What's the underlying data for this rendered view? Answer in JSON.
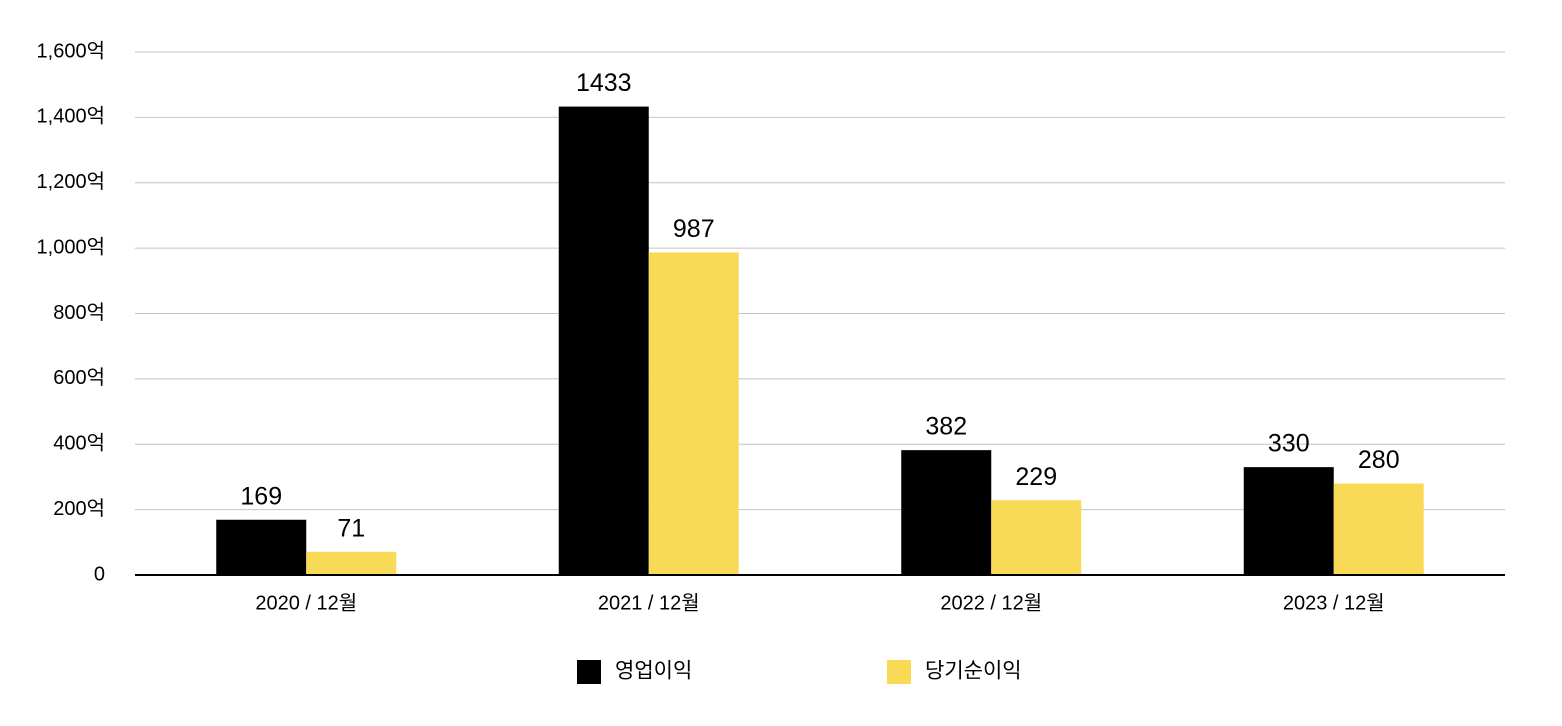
{
  "chart_data": {
    "type": "bar",
    "categories": [
      "2020 / 12월",
      "2021 / 12월",
      "2022 / 12월",
      "2023 / 12월"
    ],
    "series": [
      {
        "name": "영업이익",
        "color": "#000000",
        "values": [
          169,
          1433,
          382,
          330
        ]
      },
      {
        "name": "당기순이익",
        "color": "#f8da57",
        "values": [
          71,
          987,
          229,
          280
        ]
      }
    ],
    "ylim": [
      0,
      1600
    ],
    "yticks": [
      0,
      {
        "value": 200,
        "label": "200억"
      },
      {
        "value": 400,
        "label": "400억"
      },
      {
        "value": 600,
        "label": "600억"
      },
      {
        "value": 800,
        "label": "800억"
      },
      {
        "value": 1000,
        "label": "1,000억"
      },
      {
        "value": 1200,
        "label": "1,200억"
      },
      {
        "value": 1400,
        "label": "1,400억"
      },
      {
        "value": 1600,
        "label": "1,600억"
      }
    ],
    "grid": true,
    "legend": "bottom"
  }
}
